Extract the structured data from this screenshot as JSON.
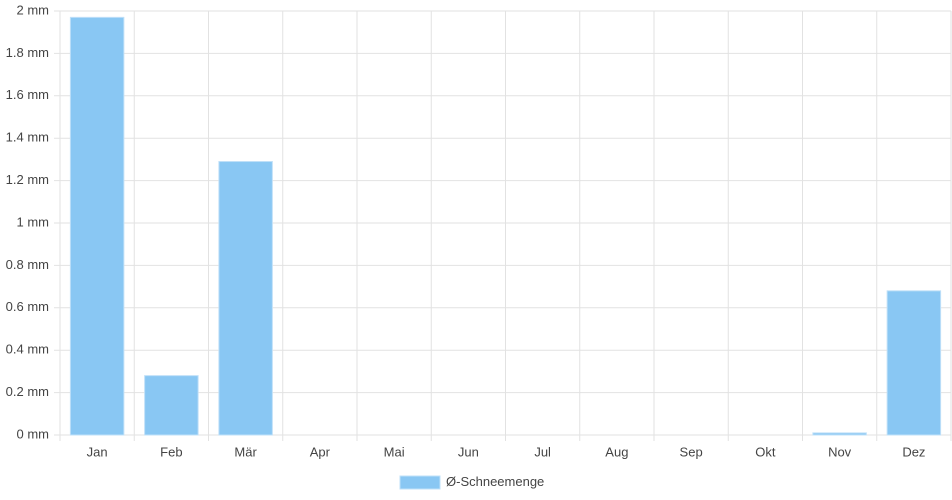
{
  "chart_data": {
    "type": "bar",
    "categories": [
      "Jan",
      "Feb",
      "Mär",
      "Apr",
      "Mai",
      "Jun",
      "Jul",
      "Aug",
      "Sep",
      "Okt",
      "Nov",
      "Dez"
    ],
    "series": [
      {
        "name": "Ø-Schneemenge",
        "color": "#89c7f3",
        "values": [
          1.97,
          0.28,
          1.29,
          0,
          0,
          0,
          0,
          0,
          0,
          0,
          0.01,
          0.68
        ]
      }
    ],
    "ylim": [
      0,
      2
    ],
    "yticks": [
      {
        "value": 0,
        "label": "0 mm"
      },
      {
        "value": 0.2,
        "label": "0.2 mm"
      },
      {
        "value": 0.4,
        "label": "0.4 mm"
      },
      {
        "value": 0.6,
        "label": "0.6 mm"
      },
      {
        "value": 0.8,
        "label": "0.8 mm"
      },
      {
        "value": 1,
        "label": "1 mm"
      },
      {
        "value": 1.2,
        "label": "1.2 mm"
      },
      {
        "value": 1.4,
        "label": "1.4 mm"
      },
      {
        "value": 1.6,
        "label": "1.6 mm"
      },
      {
        "value": 1.8,
        "label": "1.8 mm"
      },
      {
        "value": 2,
        "label": "2 mm"
      }
    ],
    "grid": true,
    "legend": "bottom"
  }
}
